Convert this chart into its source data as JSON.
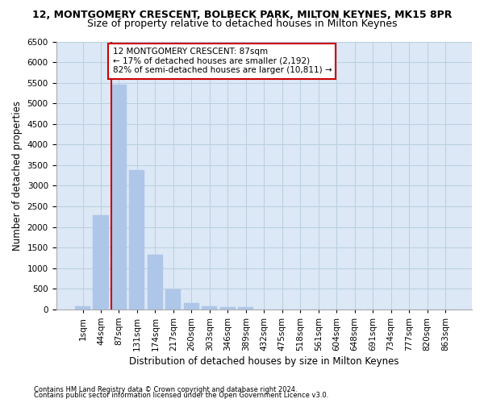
{
  "title1": "12, MONTGOMERY CRESCENT, BOLBECK PARK, MILTON KEYNES, MK15 8PR",
  "title2": "Size of property relative to detached houses in Milton Keynes",
  "xlabel": "Distribution of detached houses by size in Milton Keynes",
  "ylabel": "Number of detached properties",
  "footnote1": "Contains HM Land Registry data © Crown copyright and database right 2024.",
  "footnote2": "Contains public sector information licensed under the Open Government Licence v3.0.",
  "bar_labels": [
    "1sqm",
    "44sqm",
    "87sqm",
    "131sqm",
    "174sqm",
    "217sqm",
    "260sqm",
    "303sqm",
    "346sqm",
    "389sqm",
    "432sqm",
    "475sqm",
    "518sqm",
    "561sqm",
    "604sqm",
    "648sqm",
    "691sqm",
    "734sqm",
    "777sqm",
    "820sqm",
    "863sqm"
  ],
  "bar_values": [
    75,
    2280,
    5450,
    3380,
    1320,
    480,
    155,
    75,
    50,
    50,
    0,
    0,
    0,
    0,
    0,
    0,
    0,
    0,
    0,
    0,
    0
  ],
  "bar_color": "#aec6e8",
  "bar_edge_color": "#7aa8d8",
  "highlight_line_color": "#cc0000",
  "highlight_line_index": 2,
  "annotation_text": "12 MONTGOMERY CRESCENT: 87sqm\n← 17% of detached houses are smaller (2,192)\n82% of semi-detached houses are larger (10,811) →",
  "annotation_box_facecolor": "#ffffff",
  "annotation_box_edgecolor": "#cc0000",
  "ylim": [
    0,
    6500
  ],
  "yticks": [
    0,
    500,
    1000,
    1500,
    2000,
    2500,
    3000,
    3500,
    4000,
    4500,
    5000,
    5500,
    6000,
    6500
  ],
  "bg_color": "#ffffff",
  "plot_bg_color": "#dce8f5",
  "grid_color": "#b8cfe0",
  "title1_fontsize": 9,
  "title2_fontsize": 9,
  "xlabel_fontsize": 8.5,
  "ylabel_fontsize": 8.5,
  "tick_fontsize": 7.5,
  "annotation_fontsize": 7.5
}
